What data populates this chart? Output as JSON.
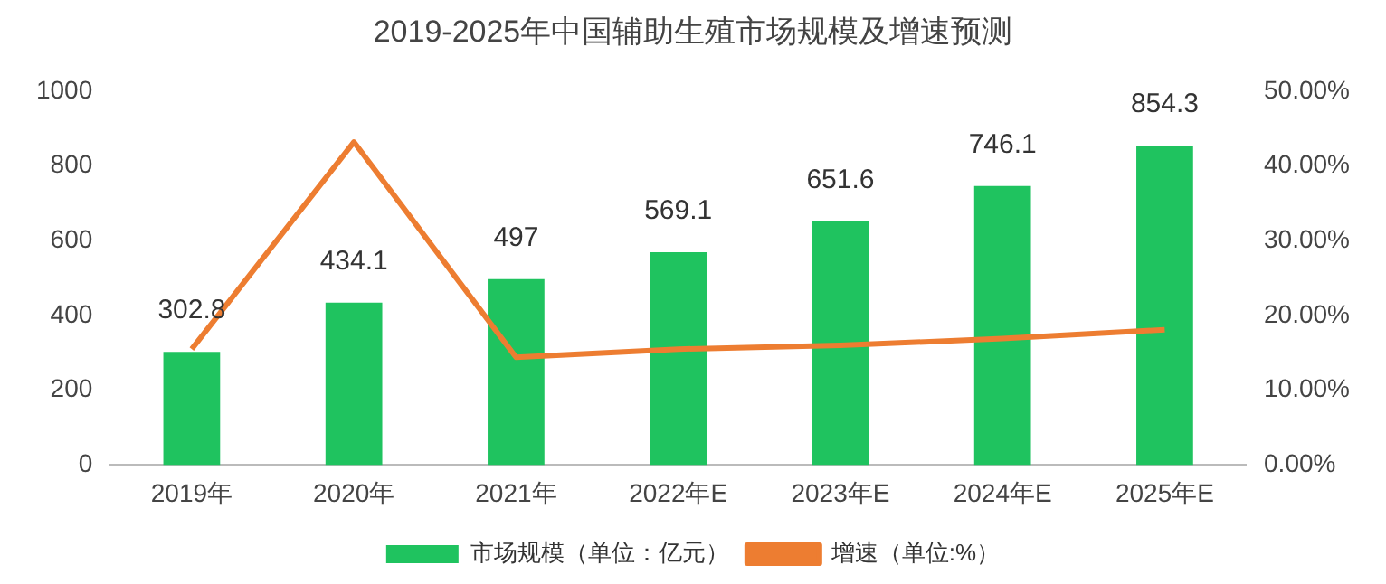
{
  "chart_data": {
    "type": "bar",
    "title": "2019-2025年中国辅助生殖市场规模及增速预测",
    "categories": [
      "2019年",
      "2020年",
      "2021年",
      "2022年E",
      "2023年E",
      "2024年E",
      "2025年E"
    ],
    "series": [
      {
        "name": "市场规模（单位：亿元）",
        "color": "#1fc35f",
        "values": [
          302.8,
          434.1,
          497,
          569.1,
          651.6,
          746.1,
          854.3
        ],
        "value_labels": [
          "302.8",
          "434.1",
          "497",
          "569.1",
          "651.6",
          "746.1",
          "854.3"
        ]
      },
      {
        "name": "增速（单位:%）",
        "type": "line",
        "axis": "y2",
        "color": "#ed7d31",
        "marker": "none",
        "values": [
          15.5,
          43.2,
          14.4,
          15.5,
          16.0,
          16.9,
          18.1
        ]
      }
    ],
    "ylim": [
      0,
      1000
    ],
    "yticks": [
      0,
      200,
      400,
      600,
      800,
      1000
    ],
    "y2lim": [
      0,
      50
    ],
    "y2ticks": [
      {
        "value": 0,
        "label": "0.00%"
      },
      {
        "value": 10,
        "label": "10.00%"
      },
      {
        "value": 20,
        "label": "20.00%"
      },
      {
        "value": 30,
        "label": "30.00%"
      },
      {
        "value": 40,
        "label": "40.00%"
      },
      {
        "value": 50,
        "label": "50.00%"
      }
    ],
    "grid": false,
    "legend": "bottom"
  }
}
